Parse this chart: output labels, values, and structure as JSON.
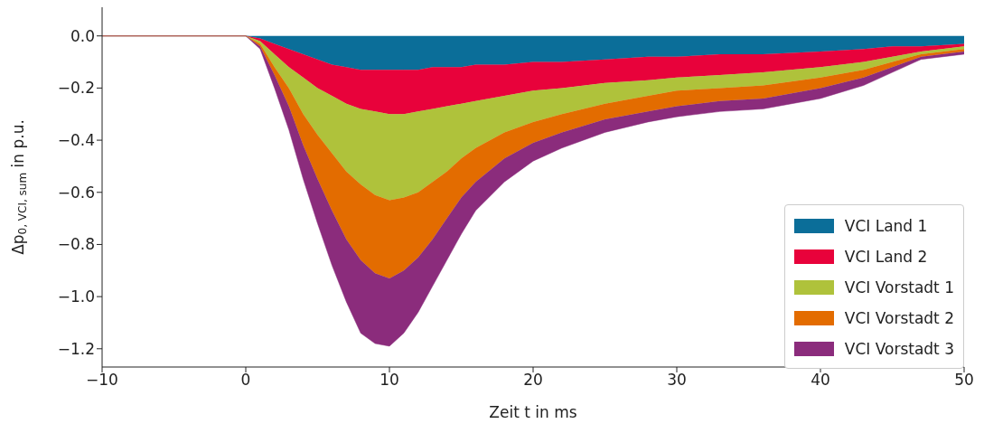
{
  "chart_data": {
    "type": "area",
    "stacked": true,
    "xlabel": "Zeit t in ms",
    "ylabel": "Δp$_{0, VCI, sum}$ in p.u.",
    "x": [
      -10,
      0,
      1,
      2,
      3,
      4,
      5,
      6,
      7,
      8,
      9,
      10,
      11,
      12,
      13,
      14,
      15,
      16,
      18,
      20,
      22,
      25,
      28,
      30,
      33,
      36,
      40,
      43,
      45,
      47,
      50
    ],
    "series": [
      {
        "name": "VCI Land 1",
        "color": "#0b6e99",
        "values": [
          0,
          0,
          -0.01,
          -0.03,
          -0.05,
          -0.07,
          -0.09,
          -0.11,
          -0.12,
          -0.13,
          -0.13,
          -0.13,
          -0.13,
          -0.13,
          -0.12,
          -0.12,
          -0.12,
          -0.11,
          -0.11,
          -0.1,
          -0.1,
          -0.09,
          -0.08,
          -0.08,
          -0.07,
          -0.07,
          -0.06,
          -0.05,
          -0.04,
          -0.04,
          -0.03
        ]
      },
      {
        "name": "VCI Land 2",
        "color": "#e8023b",
        "values": [
          0,
          0,
          -0.01,
          -0.04,
          -0.07,
          -0.09,
          -0.11,
          -0.12,
          -0.14,
          -0.15,
          -0.16,
          -0.17,
          -0.17,
          -0.16,
          -0.16,
          -0.15,
          -0.14,
          -0.14,
          -0.12,
          -0.11,
          -0.1,
          -0.09,
          -0.09,
          -0.08,
          -0.08,
          -0.07,
          -0.06,
          -0.05,
          -0.04,
          -0.02,
          -0.01
        ]
      },
      {
        "name": "VCI Vorstadt 1",
        "color": "#afc23b",
        "values": [
          0,
          0,
          -0.01,
          -0.05,
          -0.08,
          -0.14,
          -0.18,
          -0.22,
          -0.26,
          -0.29,
          -0.32,
          -0.33,
          -0.32,
          -0.31,
          -0.28,
          -0.25,
          -0.21,
          -0.18,
          -0.14,
          -0.12,
          -0.1,
          -0.08,
          -0.06,
          -0.05,
          -0.05,
          -0.05,
          -0.04,
          -0.03,
          -0.02,
          -0.01,
          -0.01
        ]
      },
      {
        "name": "VCI Vorstadt 2",
        "color": "#e36c00",
        "values": [
          0,
          0,
          -0.01,
          -0.03,
          -0.07,
          -0.12,
          -0.17,
          -0.22,
          -0.26,
          -0.29,
          -0.3,
          -0.3,
          -0.28,
          -0.25,
          -0.22,
          -0.18,
          -0.15,
          -0.13,
          -0.1,
          -0.08,
          -0.07,
          -0.06,
          -0.06,
          -0.06,
          -0.05,
          -0.05,
          -0.04,
          -0.03,
          -0.02,
          -0.01,
          -0.01
        ]
      },
      {
        "name": "VCI Vorstadt 3",
        "color": "#8b2c7c",
        "values": [
          0,
          0,
          -0.01,
          -0.05,
          -0.09,
          -0.13,
          -0.17,
          -0.21,
          -0.24,
          -0.28,
          -0.27,
          -0.26,
          -0.24,
          -0.21,
          -0.18,
          -0.16,
          -0.14,
          -0.11,
          -0.09,
          -0.07,
          -0.06,
          -0.05,
          -0.04,
          -0.04,
          -0.04,
          -0.04,
          -0.04,
          -0.03,
          -0.02,
          -0.01,
          -0.01
        ]
      }
    ],
    "xlim": [
      -10,
      50
    ],
    "xticks": [
      {
        "value": -10,
        "label": "−10"
      },
      0,
      10,
      20,
      30,
      40,
      50
    ],
    "ylim": [
      -1.27,
      0.11
    ],
    "yticks": [
      {
        "value": -1.2,
        "label": "−1.2"
      },
      {
        "value": -1.0,
        "label": "−1.0"
      },
      {
        "value": -0.8,
        "label": "−0.8"
      },
      {
        "value": -0.6,
        "label": "−0.6"
      },
      {
        "value": -0.4,
        "label": "−0.4"
      },
      {
        "value": -0.2,
        "label": "−0.2"
      },
      {
        "value": 0,
        "label": "0.0"
      }
    ],
    "legend": "bottom right"
  }
}
